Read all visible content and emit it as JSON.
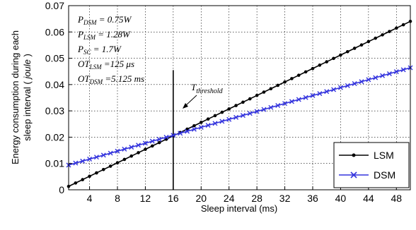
{
  "chart_data": {
    "type": "line",
    "xlabel": "Sleep interval (ms)",
    "ylabel_line1": "Energy consumption during each",
    "ylabel_line2_pre": "sleep interval ( ",
    "ylabel_line2_unit": "joule",
    "ylabel_line2_post": " )",
    "xlim": [
      1,
      50
    ],
    "ylim": [
      0,
      0.07
    ],
    "xticks": [
      4,
      8,
      12,
      16,
      20,
      24,
      28,
      32,
      36,
      40,
      44,
      48
    ],
    "yticks": [
      0,
      0.01,
      0.02,
      0.03,
      0.04,
      0.05,
      0.06,
      0.07
    ],
    "ytick_labels": [
      "0",
      "0.01",
      "0.02",
      "0.03",
      "0.04",
      "0.05",
      "0.06",
      "0.07"
    ],
    "grid": true,
    "legend_position": "bottom-right",
    "series": [
      {
        "name": "LSM",
        "color": "#000000",
        "marker": "dot",
        "x_start": 1,
        "x_end": 50,
        "step": 1,
        "y_start": 0.0013,
        "slope": 0.00128
      },
      {
        "name": "DSM",
        "color": "#3333dd",
        "marker": "x",
        "x_start": 1,
        "x_end": 50,
        "step": 1,
        "y_start": 0.0094,
        "slope": 0.000755
      }
    ],
    "threshold": {
      "x": 16,
      "label_main": "T",
      "label_sub": "threshold"
    },
    "parameters": [
      {
        "main": "P",
        "sub": "DSM",
        "value": " = 0.75W"
      },
      {
        "main": "P",
        "sub": "LSM",
        "value": " = 1.28W"
      },
      {
        "main": "P",
        "sub": "SC",
        "value": " = 1.7W"
      },
      {
        "main": "OT",
        "sub": "LSM",
        "value": " =125 μs"
      },
      {
        "main": "OT",
        "sub": "DSM",
        "value": " =5.125 ms"
      }
    ]
  }
}
